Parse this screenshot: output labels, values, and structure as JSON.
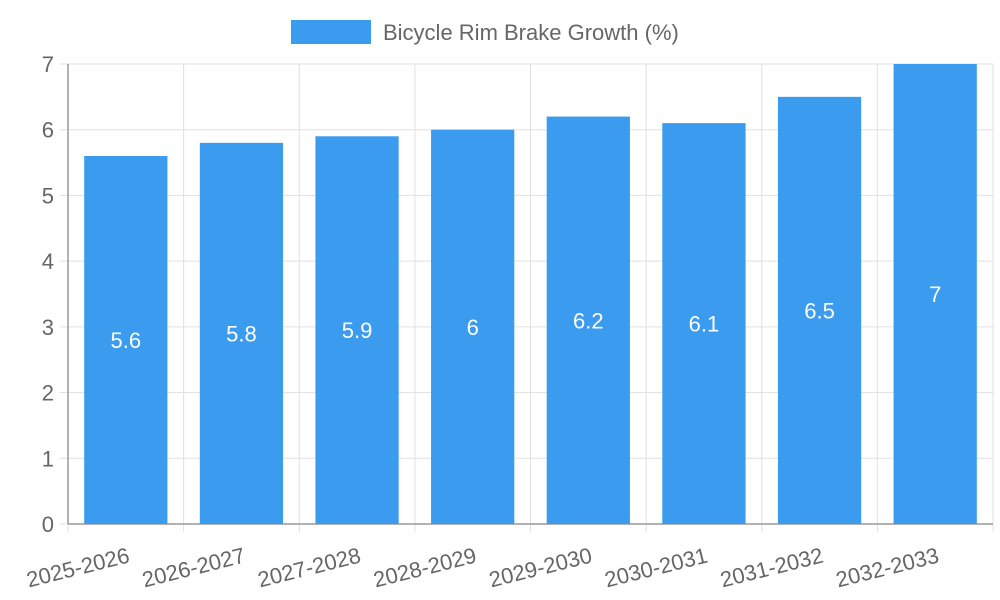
{
  "chart_data": {
    "type": "bar",
    "title": "",
    "xlabel": "",
    "ylabel": "",
    "categories": [
      "2025-2026",
      "2026-2027",
      "2027-2028",
      "2028-2029",
      "2029-2030",
      "2030-2031",
      "2031-2032",
      "2032-2033"
    ],
    "series": [
      {
        "name": "Bicycle Rim Brake Growth (%)",
        "values": [
          5.6,
          5.8,
          5.9,
          6,
          6.2,
          6.1,
          6.5,
          7
        ],
        "color": "#3a9bef"
      }
    ],
    "ylim": [
      0,
      7
    ],
    "yticks": [
      0,
      1,
      2,
      3,
      4,
      5,
      6,
      7
    ],
    "grid": true,
    "legend_position": "top-center",
    "data_labels": true
  }
}
